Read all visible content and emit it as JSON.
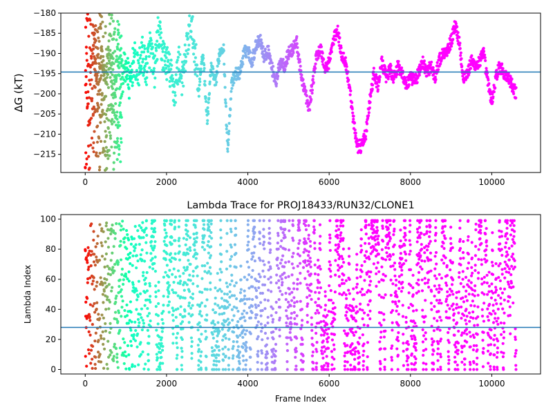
{
  "chart_data": [
    {
      "type": "scatter",
      "title": "",
      "xlabel": "",
      "ylabel": "ΔG (kT)",
      "xlim": [
        -600,
        11200
      ],
      "ylim": [
        -219.5,
        -180
      ],
      "xticks": [
        0,
        2000,
        4000,
        6000,
        8000,
        10000
      ],
      "yticks": [
        -215,
        -210,
        -205,
        -200,
        -195,
        -190,
        -185,
        -180
      ],
      "hline": -194.6,
      "hline_color": "#1f77b4",
      "colormap": "rainbow (frame index, red at start → purple at end)",
      "trace": [
        [
          0,
          -190
        ],
        [
          60,
          -182
        ],
        [
          120,
          -215
        ],
        [
          200,
          -186
        ],
        [
          300,
          -200
        ],
        [
          400,
          -192
        ],
        [
          500,
          -197
        ],
        [
          600,
          -188
        ],
        [
          700,
          -205
        ],
        [
          800,
          -190
        ],
        [
          900,
          -196
        ],
        [
          1000,
          -193
        ],
        [
          1100,
          -198
        ],
        [
          1200,
          -191
        ],
        [
          1300,
          -195
        ],
        [
          1400,
          -190
        ],
        [
          1500,
          -194
        ],
        [
          1600,
          -188
        ],
        [
          1700,
          -195
        ],
        [
          1800,
          -184
        ],
        [
          1900,
          -190
        ],
        [
          2000,
          -192
        ],
        [
          2100,
          -195
        ],
        [
          2200,
          -200
        ],
        [
          2300,
          -192
        ],
        [
          2400,
          -197
        ],
        [
          2500,
          -188
        ],
        [
          2600,
          -182
        ],
        [
          2700,
          -190
        ],
        [
          2800,
          -198
        ],
        [
          2900,
          -190
        ],
        [
          3000,
          -207
        ],
        [
          3100,
          -193
        ],
        [
          3200,
          -198
        ],
        [
          3300,
          -190
        ],
        [
          3400,
          -188
        ],
        [
          3500,
          -214
        ],
        [
          3600,
          -198
        ],
        [
          3700,
          -195
        ],
        [
          3800,
          -195
        ],
        [
          3900,
          -190
        ],
        [
          4000,
          -189
        ],
        [
          4100,
          -192
        ],
        [
          4200,
          -188
        ],
        [
          4300,
          -186
        ],
        [
          4400,
          -191
        ],
        [
          4500,
          -189
        ],
        [
          4600,
          -194
        ],
        [
          4700,
          -197
        ],
        [
          4800,
          -192
        ],
        [
          4900,
          -193
        ],
        [
          5000,
          -190
        ],
        [
          5100,
          -189
        ],
        [
          5200,
          -187
        ],
        [
          5300,
          -195
        ],
        [
          5400,
          -199
        ],
        [
          5500,
          -204
        ],
        [
          5600,
          -197
        ],
        [
          5700,
          -190
        ],
        [
          5800,
          -189
        ],
        [
          5900,
          -194
        ],
        [
          6000,
          -192
        ],
        [
          6100,
          -187
        ],
        [
          6200,
          -184
        ],
        [
          6300,
          -190
        ],
        [
          6400,
          -192
        ],
        [
          6500,
          -198
        ],
        [
          6600,
          -207
        ],
        [
          6700,
          -213
        ],
        [
          6800,
          -213
        ],
        [
          6900,
          -210
        ],
        [
          7000,
          -202
        ],
        [
          7100,
          -195
        ],
        [
          7200,
          -198
        ],
        [
          7300,
          -192
        ],
        [
          7400,
          -196
        ],
        [
          7500,
          -194
        ],
        [
          7600,
          -196
        ],
        [
          7700,
          -193
        ],
        [
          7800,
          -195
        ],
        [
          7900,
          -198
        ],
        [
          8000,
          -196
        ],
        [
          8100,
          -197
        ],
        [
          8200,
          -195
        ],
        [
          8300,
          -192
        ],
        [
          8400,
          -195
        ],
        [
          8500,
          -193
        ],
        [
          8600,
          -196
        ],
        [
          8700,
          -192
        ],
        [
          8800,
          -190
        ],
        [
          8900,
          -189
        ],
        [
          9000,
          -187
        ],
        [
          9100,
          -183
        ],
        [
          9200,
          -187
        ],
        [
          9300,
          -196
        ],
        [
          9400,
          -195
        ],
        [
          9500,
          -192
        ],
        [
          9600,
          -193
        ],
        [
          9700,
          -192
        ],
        [
          9800,
          -190
        ],
        [
          9900,
          -197
        ],
        [
          10000,
          -202
        ],
        [
          10100,
          -196
        ],
        [
          10200,
          -193
        ],
        [
          10300,
          -195
        ],
        [
          10400,
          -196
        ],
        [
          10500,
          -198
        ],
        [
          10600,
          -200
        ]
      ],
      "early_scatter": {
        "x_range": [
          0,
          900
        ],
        "y_range": [
          -219,
          -180
        ]
      }
    },
    {
      "type": "scatter",
      "title": "Lambda Trace for PROJ18433/RUN32/CLONE1",
      "xlabel": "Frame Index",
      "ylabel": "Lambda Index",
      "xlim": [
        -600,
        11200
      ],
      "ylim": [
        -3,
        103
      ],
      "xticks": [
        0,
        2000,
        4000,
        6000,
        8000,
        10000
      ],
      "yticks": [
        0,
        20,
        40,
        60,
        80,
        100
      ],
      "hline": 28,
      "hline_color": "#1f77b4",
      "colormap": "rainbow (frame index, red at start → purple at end)",
      "x_range": [
        0,
        10600
      ],
      "lambda_range": [
        0,
        99
      ]
    }
  ]
}
